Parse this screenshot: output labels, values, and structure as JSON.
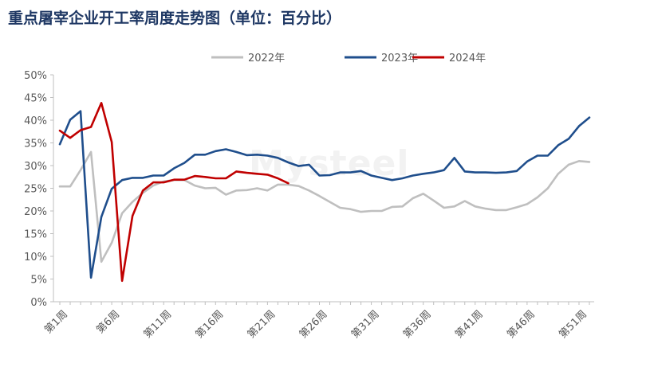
{
  "chart_data": {
    "type": "line",
    "title": "重点屠宰企业开工率周度走势图（单位：百分比）",
    "xlabel": "",
    "ylabel": "",
    "ylim": [
      0,
      50
    ],
    "yticks": [
      "0%",
      "5%",
      "10%",
      "15%",
      "20%",
      "25%",
      "30%",
      "35%",
      "40%",
      "45%",
      "50%"
    ],
    "xticks": [
      {
        "week": 1,
        "label": "第1周"
      },
      {
        "week": 6,
        "label": "第6周"
      },
      {
        "week": 11,
        "label": "第11周"
      },
      {
        "week": 16,
        "label": "第16周"
      },
      {
        "week": 21,
        "label": "第21周"
      },
      {
        "week": 26,
        "label": "第26周"
      },
      {
        "week": 31,
        "label": "第31周"
      },
      {
        "week": 36,
        "label": "第36周"
      },
      {
        "week": 41,
        "label": "第41周"
      },
      {
        "week": 46,
        "label": "第46周"
      },
      {
        "week": 51,
        "label": "第51周"
      }
    ],
    "grid": false,
    "legend": "top",
    "series": [
      {
        "name": "2022年",
        "color": "#bfbfbf",
        "values": [
          25.4,
          25.4,
          29.0,
          33.0,
          8.8,
          13.0,
          19.5,
          22.0,
          24.0,
          25.6,
          26.5,
          26.8,
          26.8,
          25.6,
          25.0,
          25.1,
          23.6,
          24.5,
          24.6,
          25.0,
          24.5,
          25.8,
          25.8,
          25.5,
          24.5,
          23.3,
          22.0,
          20.7,
          20.4,
          19.8,
          20.0,
          20.0,
          20.9,
          21.0,
          22.8,
          23.8,
          22.3,
          20.7,
          21.0,
          22.2,
          21.0,
          20.5,
          20.2,
          20.2,
          20.8,
          21.5,
          23.0,
          25.0,
          28.2,
          30.2,
          31.0,
          30.8
        ]
      },
      {
        "name": "2023年",
        "color": "#1f4e8c",
        "values": [
          34.7,
          40.1,
          42.0,
          5.3,
          18.7,
          24.9,
          26.8,
          27.3,
          27.3,
          27.8,
          27.8,
          29.4,
          30.6,
          32.4,
          32.4,
          33.2,
          33.6,
          33.0,
          32.3,
          32.4,
          32.2,
          31.7,
          30.7,
          29.9,
          30.2,
          27.8,
          27.9,
          28.5,
          28.5,
          28.8,
          27.8,
          27.3,
          26.8,
          27.2,
          27.8,
          28.2,
          28.5,
          29.0,
          31.7,
          28.7,
          28.5,
          28.5,
          28.4,
          28.5,
          28.8,
          30.9,
          32.2,
          32.2,
          34.5,
          35.9,
          38.7,
          40.6
        ]
      },
      {
        "name": "2024年",
        "color": "#c00000",
        "values": [
          37.7,
          36.1,
          37.8,
          38.5,
          43.8,
          35.2,
          4.6,
          18.9,
          24.5,
          26.3,
          26.3,
          26.9,
          26.9,
          27.7,
          27.5,
          27.2,
          27.2,
          28.7,
          28.4,
          28.2,
          28.0,
          27.2,
          26.1
        ]
      }
    ]
  },
  "watermark": "Mysteel"
}
